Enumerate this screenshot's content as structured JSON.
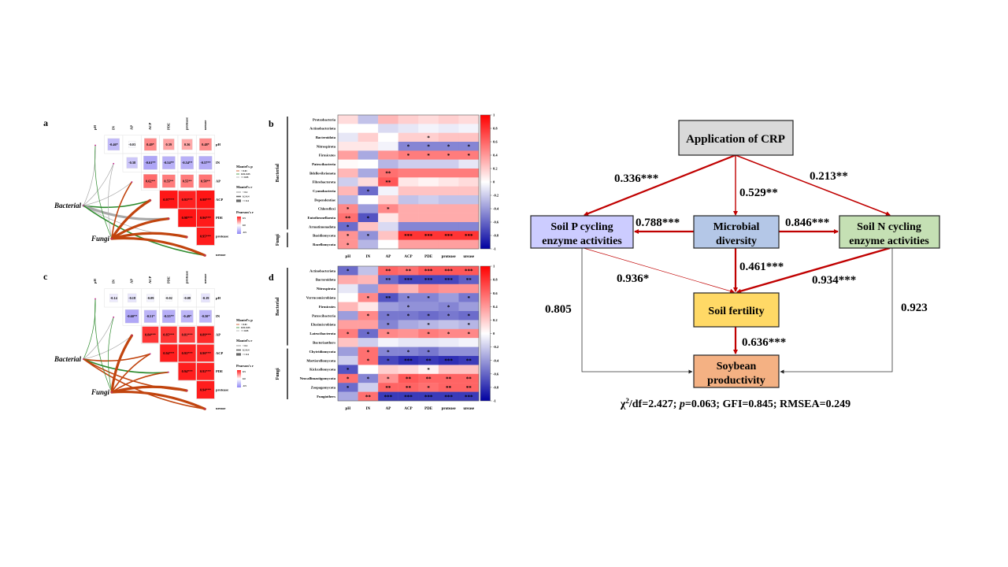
{
  "panel_labels": {
    "a": "a",
    "b": "b",
    "c": "c",
    "d": "d"
  },
  "colors": {
    "positive": "#ff1010",
    "negative_heatmap": "#0a0aa8",
    "negative_corr": "#7b6cf0",
    "mantel_p_lt001": "#c1440e",
    "mantel_p_001_005": "#2e8b2e",
    "mantel_p_ge005": "#a8a8a8",
    "path_red": "#c00000",
    "box_crp": "#d9d9d9",
    "box_p": "#ccccff",
    "box_micro": "#b4c7e7",
    "box_n": "#c5e0b4",
    "box_fert": "#ffd966",
    "box_soy": "#f4b183"
  },
  "variables": [
    "pH",
    "IN",
    "AP",
    "ACP",
    "PDE",
    "protease",
    "urease"
  ],
  "mantel_legend": {
    "p_title": "Mantel's p",
    "p_items": [
      "< 0.01",
      "0.01-0.05",
      ">= 0.05"
    ],
    "r_title": "Mantel's r",
    "r_items": [
      "< 0.2",
      "0.2-0.4",
      ">= 0.4"
    ],
    "pearson_title": "Pearson's r",
    "pearson_ticks": [
      "0.5",
      "0.0",
      "-0.5"
    ]
  },
  "chart_data": [
    {
      "panel": "a",
      "type": "heatmap",
      "nodes": [
        "Bacterial",
        "Fungi"
      ],
      "corr": [
        [
          "-0.46*",
          "-0.03",
          "0.49*",
          "0.39",
          "0.36",
          "0.48*"
        ],
        [
          "-0.38",
          "-0.61**",
          "-0.54**",
          "-0.54**",
          "-0.57**"
        ],
        [
          "0.62**",
          "0.55**",
          "0.55**",
          "0.58**"
        ],
        [
          "0.97***",
          "0.93***",
          "0.98***"
        ],
        [
          "0.98***",
          "0.96***"
        ],
        [
          "0.95***"
        ]
      ],
      "mantel": {
        "Bacterial": [
          [
            ">= 0.05",
            "< 0.2"
          ],
          [
            ">= 0.05",
            "< 0.2"
          ],
          [
            ">= 0.05",
            "< 0.2"
          ],
          [
            "0.01-0.05",
            "0.2-0.4"
          ],
          [
            ">= 0.05",
            ">= 0.4"
          ],
          [
            ">= 0.05",
            "< 0.2"
          ],
          [
            "0.01-0.05",
            "0.2-0.4"
          ]
        ],
        "Fungi": [
          [
            "0.01-0.05",
            "< 0.2"
          ],
          [
            ">= 0.05",
            "< 0.2"
          ],
          [
            "< 0.01",
            "0.2-0.4"
          ],
          [
            "< 0.01",
            ">= 0.4"
          ],
          [
            "< 0.01",
            ">= 0.4"
          ],
          [
            "< 0.01",
            ">= 0.4"
          ],
          [
            "< 0.01",
            ">= 0.4"
          ]
        ]
      }
    },
    {
      "panel": "b",
      "type": "heatmap",
      "groups": [
        {
          "name": "Bacterial",
          "count": 13
        },
        {
          "name": "Fungi",
          "count": 2
        }
      ],
      "rows": [
        "Proteobacteria",
        "Actinobacteriota",
        "Bacteroidota",
        "Nitrospirota",
        "Firmicutes",
        "Patescibacteria",
        "Bdellovibrionota",
        "Fibrobacterota",
        "Cyanobacteria",
        "Dependentiae",
        "Chloroflexi",
        "Entotheonellaeota",
        "Armatimonadota",
        "Basidiomycota",
        "Rozellomycota"
      ],
      "values": [
        [
          0.15,
          -0.25,
          0.3,
          0.2,
          0.15,
          0.2,
          0.15
        ],
        [
          0,
          0,
          -0.15,
          -0.1,
          -0.05,
          -0.08,
          -0.05
        ],
        [
          -0.1,
          0.2,
          0,
          0.2,
          0.2,
          0.25,
          0.25
        ],
        [
          0.1,
          0.1,
          -0.05,
          -0.5,
          -0.5,
          -0.5,
          -0.5
        ],
        [
          0.4,
          -0.35,
          0.45,
          0.55,
          0.55,
          0.55,
          0.55
        ],
        [
          0.02,
          0,
          -0.3,
          -0.2,
          -0.2,
          -0.2,
          -0.1
        ],
        [
          0.3,
          -0.35,
          0.6,
          0.55,
          0.55,
          0.55,
          0.55
        ],
        [
          -0.2,
          0.15,
          0.7,
          0.1,
          0.05,
          0.1,
          0.15
        ],
        [
          0.3,
          -0.6,
          -0.05,
          0.25,
          0.25,
          0.25,
          0.25
        ],
        [
          -0.3,
          0,
          0.2,
          -0.25,
          -0.2,
          -0.25,
          -0.25
        ],
        [
          0.5,
          -0.4,
          0.5,
          0.35,
          0.35,
          0.35,
          0.35
        ],
        [
          0.6,
          -0.7,
          0.1,
          0.35,
          0.35,
          0.35,
          0.35
        ],
        [
          -0.6,
          0.25,
          -0.15,
          -0.5,
          -0.5,
          -0.5,
          -0.5
        ],
        [
          0.45,
          -0.45,
          0.25,
          0.85,
          0.85,
          0.85,
          0.85
        ],
        [
          0.45,
          -0.3,
          0,
          0.4,
          0.4,
          0.4,
          0.4
        ]
      ],
      "stars": [
        [
          "",
          "",
          "",
          "",
          "",
          "",
          ""
        ],
        [
          "",
          "",
          "",
          "",
          "",
          "",
          ""
        ],
        [
          "",
          "",
          "",
          "",
          "*",
          "",
          ""
        ],
        [
          "",
          "",
          "",
          "*",
          "*",
          "*",
          "*"
        ],
        [
          "",
          "",
          "",
          "*",
          "*",
          "*",
          "*"
        ],
        [
          "",
          "",
          "",
          "",
          "",
          "",
          ""
        ],
        [
          "",
          "",
          "**",
          "",
          "",
          "",
          ""
        ],
        [
          "",
          "",
          "**",
          "",
          "",
          "",
          ""
        ],
        [
          "",
          "*",
          "",
          "",
          "",
          "",
          ""
        ],
        [
          "",
          "",
          "",
          "",
          "",
          "",
          ""
        ],
        [
          "*",
          "",
          "*",
          "",
          "",
          "",
          ""
        ],
        [
          "**",
          "*",
          "",
          "",
          "",
          "",
          ""
        ],
        [
          "*",
          "",
          "",
          "",
          "",
          "",
          ""
        ],
        [
          "*",
          "*",
          "",
          "***",
          "***",
          "***",
          "***"
        ],
        [
          "*",
          "",
          "",
          "",
          "",
          "",
          ""
        ]
      ],
      "colorbar_ticks": [
        "1",
        "0.8",
        "0.6",
        "0.4",
        "0.2",
        "0",
        "-0.2",
        "-0.4",
        "-0.6",
        "-0.8",
        "-1"
      ],
      "range": [
        -1,
        1
      ]
    },
    {
      "panel": "c",
      "type": "heatmap",
      "nodes": [
        "Bacterial",
        "Fungi"
      ],
      "corr": [
        [
          "-0.14",
          "-0.18",
          "-0.09",
          "-0.02",
          "-0.08",
          "-0.19"
        ],
        [
          "-0.60**",
          "-0.51*",
          "-0.55**",
          "-0.49*",
          "-0.50*"
        ],
        [
          "0.84***",
          "0.85***",
          "0.81***",
          "0.89***"
        ],
        [
          "0.94***",
          "0.93***",
          "0.90***"
        ],
        [
          "0.94***",
          "0.92***"
        ],
        [
          "0.94***"
        ]
      ],
      "mantel": {
        "Bacterial": [
          [
            "0.01-0.05",
            "< 0.2"
          ],
          [
            ">= 0.05",
            "< 0.2"
          ],
          [
            ">= 0.05",
            "< 0.2"
          ],
          [
            "< 0.01",
            "0.2-0.4"
          ],
          [
            "0.01-0.05",
            "0.2-0.4"
          ],
          [
            "< 0.01",
            "0.2-0.4"
          ],
          [
            "< 0.01",
            "0.2-0.4"
          ]
        ],
        "Fungi": [
          [
            "0.01-0.05",
            "< 0.2"
          ],
          [
            "0.01-0.05",
            "< 0.2"
          ],
          [
            "< 0.01",
            ">= 0.4"
          ],
          [
            "< 0.01",
            "0.2-0.4"
          ],
          [
            "< 0.01",
            "0.2-0.4"
          ],
          [
            "< 0.01",
            ">= 0.4"
          ],
          [
            "< 0.01",
            ">= 0.4"
          ]
        ]
      }
    },
    {
      "panel": "d",
      "type": "heatmap",
      "groups": [
        {
          "name": "Bacterial",
          "count": 9
        },
        {
          "name": "Fungi",
          "count": 6
        }
      ],
      "rows": [
        "Actinobacteriota",
        "Bacteroidota",
        "Nitrospirota",
        "Verrucomicrobiota",
        "Firmicutes",
        "Patescibacteria",
        "Elusimicrobiota",
        "Latescibacterota",
        "Bacteriaothers",
        "Chytridiomycota",
        "Mortierellomycota",
        "Kickxellomycota",
        "Neocallimastigomycota",
        "Zoopagomycota",
        "Fungiothers"
      ],
      "values": [
        [
          -0.6,
          -0.25,
          0.65,
          0.6,
          0.7,
          0.7,
          0.7
        ],
        [
          0.35,
          0.3,
          -0.6,
          -0.75,
          -0.75,
          -0.75,
          -0.65
        ],
        [
          -0.1,
          -0.4,
          0.45,
          0.3,
          0.5,
          0.45,
          0.45
        ],
        [
          0,
          0.5,
          -0.7,
          -0.5,
          -0.5,
          -0.4,
          -0.55
        ],
        [
          0.3,
          0.1,
          -0.4,
          -0.45,
          -0.45,
          -0.5,
          -0.4
        ],
        [
          -0.4,
          0.5,
          -0.55,
          -0.55,
          -0.6,
          -0.55,
          -0.6
        ],
        [
          0.4,
          0.4,
          -0.5,
          -0.35,
          -0.3,
          -0.25,
          -0.3
        ],
        [
          0.55,
          -0.6,
          0.5,
          0.45,
          0.55,
          0.5,
          0.5
        ],
        [
          0.25,
          -0.2,
          -0.05,
          -0.1,
          -0.1,
          -0.08,
          -0.05
        ],
        [
          -0.4,
          0.6,
          -0.5,
          -0.5,
          -0.55,
          -0.45,
          -0.45
        ],
        [
          -0.2,
          0.6,
          -0.75,
          -0.85,
          -0.8,
          -0.85,
          -0.8
        ],
        [
          -0.7,
          0,
          0.2,
          0.15,
          0.05,
          0.25,
          0.25
        ],
        [
          0.6,
          -0.5,
          0.45,
          0.7,
          0.65,
          0.65,
          0.65
        ],
        [
          -0.6,
          -0.2,
          0.65,
          0.65,
          0.6,
          0.65,
          0.65
        ],
        [
          -0.35,
          0.6,
          -0.8,
          -0.8,
          -0.8,
          -0.8,
          -0.8
        ]
      ],
      "stars": [
        [
          "*",
          "",
          "**",
          "**",
          "***",
          "***",
          "***"
        ],
        [
          "",
          "",
          "**",
          "***",
          "***",
          "***",
          "**"
        ],
        [
          "",
          "",
          "",
          "",
          "",
          "",
          ""
        ],
        [
          "",
          "*",
          "**",
          "*",
          "*",
          "",
          "*"
        ],
        [
          "",
          "",
          "",
          "*",
          "",
          "*",
          ""
        ],
        [
          "",
          "*",
          "*",
          "*",
          "*",
          "*",
          "*"
        ],
        [
          "",
          "",
          "*",
          "",
          "*",
          "",
          "*"
        ],
        [
          "*",
          "*",
          "*",
          "",
          "*",
          "*",
          "*"
        ],
        [
          "",
          "",
          "",
          "",
          "",
          "",
          ""
        ],
        [
          "",
          "*",
          "*",
          "*",
          "*",
          "",
          ""
        ],
        [
          "",
          "*",
          "*",
          "***",
          "**",
          "***",
          "**"
        ],
        [
          "*",
          "",
          "",
          "",
          "*",
          "",
          ""
        ],
        [
          "*",
          "*",
          "*",
          "**",
          "**",
          "**",
          "**"
        ],
        [
          "*",
          "",
          "**",
          "**",
          "*",
          "**",
          "**"
        ],
        [
          "",
          "**",
          "***",
          "***",
          "***",
          "***",
          "***"
        ]
      ],
      "colorbar_ticks": [
        "1",
        "0.8",
        "0.6",
        "0.4",
        "0.2",
        "0",
        "-0.2",
        "-0.4",
        "-0.6",
        "-0.8",
        "-1"
      ],
      "range": [
        -1,
        1
      ]
    }
  ],
  "sem": {
    "boxes": {
      "crp": "Application of CRP",
      "soil_p": [
        "Soil P cycling",
        "enzyme activities"
      ],
      "microbial": [
        "Microbial",
        "diversity"
      ],
      "soil_n": [
        "Soil N cycling",
        "enzyme activities"
      ],
      "fertility": "Soil fertility",
      "soybean": [
        "Soybean",
        "productivity"
      ]
    },
    "paths": {
      "crp_to_p": "0.336***",
      "crp_to_micro": "0.529**",
      "crp_to_n": "0.213**",
      "micro_to_p": "0.788***",
      "micro_to_n": "0.846***",
      "micro_to_fert": "0.461***",
      "p_to_fert": "0.936*",
      "n_to_fert": "0.934***",
      "p_to_soy": "0.805",
      "n_to_soy": "0.923",
      "fert_to_soy": "0.636***"
    },
    "fit": {
      "chi": "χ",
      "sup": "2",
      "df": "/df=2.427; ",
      "p_label": "p",
      "rest": "=0.063; GFI=0.845; RMSEA=0.249"
    }
  }
}
